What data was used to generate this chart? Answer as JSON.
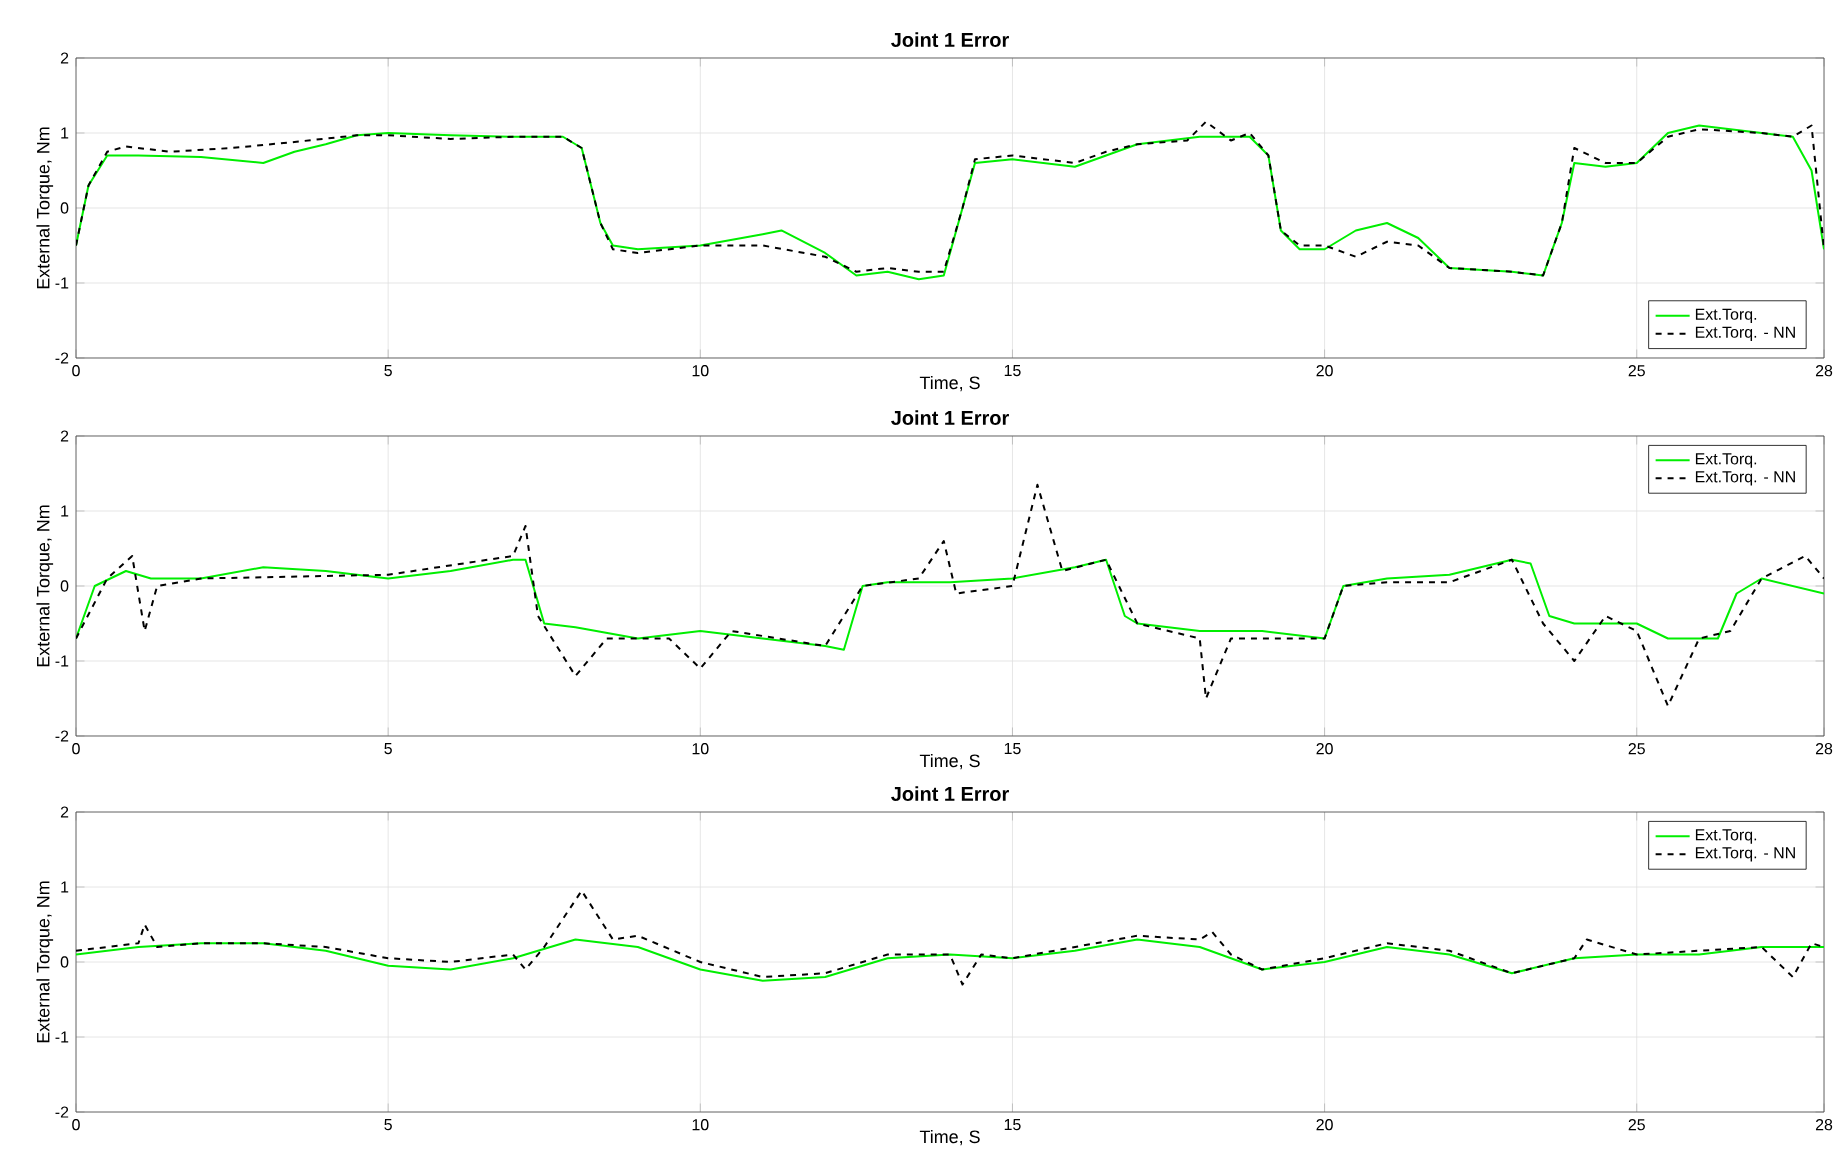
{
  "chart_data": [
    {
      "type": "line",
      "title": "Joint 1 Error",
      "xlabel": "Time, S",
      "ylabel": "External Torque, Nm",
      "xlim": [
        0,
        28
      ],
      "ylim": [
        -2,
        2
      ],
      "xticks": [
        0,
        5,
        10,
        15,
        20,
        25,
        28
      ],
      "yticks": [
        -2,
        -1,
        0,
        1,
        2
      ],
      "grid": true,
      "legend": "bottom right",
      "series": [
        {
          "name": "Ext.Torq.",
          "color": "#00ee00",
          "line_style": "solid",
          "x": [
            0,
            0.2,
            0.5,
            1,
            2,
            3,
            3.5,
            4,
            4.5,
            5,
            6,
            7,
            7.8,
            8.1,
            8.4,
            8.6,
            9,
            10,
            11,
            11.3,
            12,
            12.5,
            13,
            13.5,
            13.9,
            14.2,
            14.4,
            15,
            16,
            16.5,
            17,
            18,
            18.8,
            19.1,
            19.3,
            19.6,
            20,
            20.5,
            21,
            21.5,
            22,
            23,
            23.5,
            23.8,
            24,
            24.5,
            25,
            25.5,
            26,
            27,
            27.5,
            27.8,
            28
          ],
          "values": [
            -0.5,
            0.3,
            0.7,
            0.7,
            0.68,
            0.6,
            0.75,
            0.85,
            0.97,
            1.0,
            0.97,
            0.95,
            0.95,
            0.8,
            -0.2,
            -0.5,
            -0.55,
            -0.5,
            -0.35,
            -0.3,
            -0.6,
            -0.9,
            -0.85,
            -0.95,
            -0.9,
            0,
            0.6,
            0.65,
            0.55,
            0.7,
            0.85,
            0.95,
            0.95,
            0.7,
            -0.3,
            -0.55,
            -0.55,
            -0.3,
            -0.2,
            -0.4,
            -0.8,
            -0.85,
            -0.9,
            -0.2,
            0.6,
            0.55,
            0.6,
            1.0,
            1.1,
            1.0,
            0.95,
            0.5,
            -0.55
          ]
        },
        {
          "name": "Ext.Torq. - NN",
          "color": "#000000",
          "line_style": "dashed",
          "x": [
            0,
            0.2,
            0.5,
            0.8,
            1.5,
            2.5,
            3.5,
            4.5,
            5,
            6,
            7,
            7.8,
            8.1,
            8.4,
            8.6,
            9,
            10,
            11,
            12,
            12.5,
            13,
            13.5,
            13.9,
            14.2,
            14.4,
            15,
            16,
            16.5,
            17,
            17.8,
            18.1,
            18.5,
            18.8,
            19.1,
            19.3,
            19.6,
            20,
            20.5,
            21,
            21.5,
            22,
            23,
            23.5,
            23.8,
            24,
            24.5,
            25,
            25.5,
            26,
            27,
            27.5,
            27.8,
            28
          ],
          "values": [
            -0.5,
            0.3,
            0.75,
            0.82,
            0.75,
            0.8,
            0.88,
            0.97,
            0.97,
            0.92,
            0.95,
            0.95,
            0.8,
            -0.2,
            -0.55,
            -0.6,
            -0.5,
            -0.5,
            -0.65,
            -0.85,
            -0.8,
            -0.85,
            -0.85,
            0,
            0.65,
            0.7,
            0.6,
            0.75,
            0.85,
            0.9,
            1.15,
            0.9,
            1.0,
            0.7,
            -0.3,
            -0.5,
            -0.5,
            -0.65,
            -0.45,
            -0.5,
            -0.8,
            -0.85,
            -0.9,
            -0.2,
            0.8,
            0.6,
            0.6,
            0.95,
            1.05,
            1.0,
            0.95,
            1.1,
            -0.55
          ]
        }
      ]
    },
    {
      "type": "line",
      "title": "Joint 1 Error",
      "xlabel": "Time, S",
      "ylabel": "External Torque, Nm",
      "xlim": [
        0,
        28
      ],
      "ylim": [
        -2,
        2
      ],
      "xticks": [
        0,
        5,
        10,
        15,
        20,
        25,
        28
      ],
      "yticks": [
        -2,
        -1,
        0,
        1,
        2
      ],
      "grid": true,
      "legend": "top right",
      "series": [
        {
          "name": "Ext.Torq.",
          "color": "#00ee00",
          "line_style": "solid",
          "x": [
            0,
            0.3,
            0.8,
            1.2,
            2,
            3,
            4,
            5,
            6,
            7,
            7.2,
            7.5,
            8,
            9,
            10,
            11,
            12,
            12.3,
            12.6,
            13,
            14,
            15,
            16,
            16.5,
            16.8,
            17,
            18,
            19,
            20,
            20.3,
            21,
            22,
            23,
            23.3,
            23.6,
            24,
            25,
            25.5,
            26,
            26.3,
            26.6,
            27,
            28
          ],
          "values": [
            -0.7,
            0,
            0.2,
            0.1,
            0.1,
            0.25,
            0.2,
            0.1,
            0.2,
            0.35,
            0.35,
            -0.5,
            -0.55,
            -0.7,
            -0.6,
            -0.7,
            -0.8,
            -0.85,
            0,
            0.05,
            0.05,
            0.1,
            0.25,
            0.35,
            -0.4,
            -0.5,
            -0.6,
            -0.6,
            -0.7,
            0,
            0.1,
            0.15,
            0.35,
            0.3,
            -0.4,
            -0.5,
            -0.5,
            -0.7,
            -0.7,
            -0.7,
            -0.1,
            0.1,
            -0.1
          ]
        },
        {
          "name": "Ext.Torq. - NN",
          "color": "#000000",
          "line_style": "dashed",
          "x": [
            0,
            0.5,
            0.9,
            1.1,
            1.3,
            2,
            5,
            7,
            7.2,
            7.4,
            8,
            8.5,
            9.5,
            10,
            10.5,
            12,
            12.6,
            13.5,
            13.9,
            14.1,
            15,
            15.4,
            15.8,
            16.5,
            17,
            18,
            18.1,
            18.5,
            19.5,
            20,
            20.3,
            21,
            22,
            23,
            23.5,
            24,
            24.5,
            25,
            25.5,
            26,
            26.5,
            27,
            27.7,
            28
          ],
          "values": [
            -0.7,
            0.1,
            0.4,
            -0.6,
            0,
            0.1,
            0.15,
            0.4,
            0.8,
            -0.4,
            -1.2,
            -0.7,
            -0.7,
            -1.1,
            -0.6,
            -0.8,
            0,
            0.1,
            0.6,
            -0.1,
            0,
            1.35,
            0.2,
            0.35,
            -0.5,
            -0.7,
            -1.5,
            -0.7,
            -0.7,
            -0.7,
            0,
            0.05,
            0.05,
            0.35,
            -0.5,
            -1.0,
            -0.4,
            -0.6,
            -1.6,
            -0.7,
            -0.6,
            0.1,
            0.4,
            0.1
          ]
        }
      ]
    },
    {
      "type": "line",
      "title": "Joint 1 Error",
      "xlabel": "Time, S",
      "ylabel": "External Torque, Nm",
      "xlim": [
        0,
        28
      ],
      "ylim": [
        -2,
        2
      ],
      "xticks": [
        0,
        5,
        10,
        15,
        20,
        25,
        28
      ],
      "yticks": [
        -2,
        -1,
        0,
        1,
        2
      ],
      "grid": true,
      "legend": "top right",
      "series": [
        {
          "name": "Ext.Torq.",
          "color": "#00ee00",
          "line_style": "solid",
          "x": [
            0,
            1,
            2,
            3,
            4,
            5,
            6,
            7,
            8,
            9,
            10,
            11,
            12,
            13,
            14,
            15,
            16,
            17,
            18,
            19,
            20,
            21,
            22,
            23,
            24,
            25,
            26,
            27,
            28
          ],
          "values": [
            0.1,
            0.2,
            0.25,
            0.25,
            0.15,
            -0.05,
            -0.1,
            0.05,
            0.3,
            0.2,
            -0.1,
            -0.25,
            -0.2,
            0.05,
            0.1,
            0.05,
            0.15,
            0.3,
            0.2,
            -0.1,
            0,
            0.2,
            0.1,
            -0.15,
            0.05,
            0.1,
            0.1,
            0.2,
            0.2
          ]
        },
        {
          "name": "Ext.Torq. - NN",
          "color": "#000000",
          "line_style": "dashed",
          "x": [
            0,
            1,
            1.1,
            1.3,
            2,
            3,
            4,
            5,
            6,
            7,
            7.2,
            7.5,
            8.1,
            8.6,
            9,
            10,
            11,
            12,
            13,
            14,
            14.2,
            14.5,
            15,
            16,
            17,
            18,
            18.2,
            18.5,
            19,
            20,
            21,
            22,
            23,
            24,
            24.2,
            25,
            26,
            27,
            27.5,
            27.8,
            28
          ],
          "values": [
            0.15,
            0.25,
            0.5,
            0.2,
            0.25,
            0.25,
            0.2,
            0.05,
            0,
            0.1,
            -0.1,
            0.2,
            0.95,
            0.3,
            0.35,
            0,
            -0.2,
            -0.15,
            0.1,
            0.1,
            -0.3,
            0.1,
            0.05,
            0.2,
            0.35,
            0.3,
            0.4,
            0.1,
            -0.1,
            0.05,
            0.25,
            0.15,
            -0.15,
            0.05,
            0.3,
            0.1,
            0.15,
            0.2,
            -0.2,
            0.25,
            0.2
          ]
        }
      ]
    }
  ]
}
